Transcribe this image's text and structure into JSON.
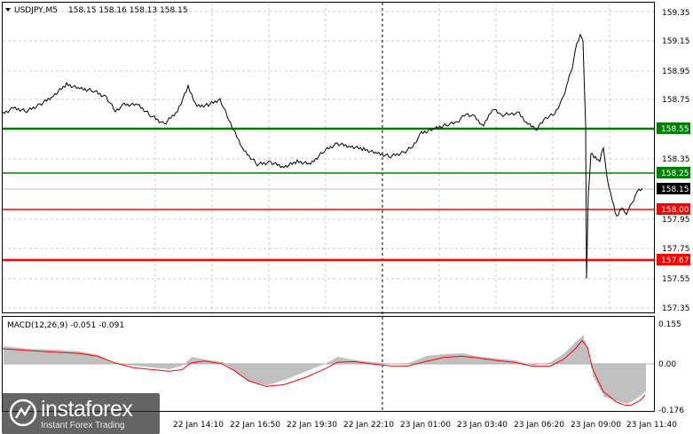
{
  "header": {
    "symbol": "USDJPY,M5",
    "ohlc": "158.15 158.16 158.13 158.15"
  },
  "macd": {
    "title": "MACD(12,26,9) -0.051 -0.091",
    "ticks": [
      "0.155",
      "0.00",
      "-0.176"
    ]
  },
  "price_axis": {
    "ticks": [
      "159.35",
      "159.15",
      "158.95",
      "158.75",
      "158.35",
      "157.95",
      "157.75",
      "157.55",
      "157.35"
    ]
  },
  "time_axis": {
    "ticks": [
      "22 Jan 14:10",
      "22 Jan 16:50",
      "22 Jan 19:30",
      "22 Jan 22:10",
      "23 Jan 01:00",
      "23 Jan 03:40",
      "23 Jan 06:20",
      "23 Jan 09:00",
      "23 Jan 11:40"
    ]
  },
  "levels": [
    {
      "value": "158.55",
      "color": "#008000"
    },
    {
      "value": "158.25",
      "color": "#008000"
    },
    {
      "value": "158.15",
      "color": "#000000"
    },
    {
      "value": "158.00",
      "color": "#ff0000"
    },
    {
      "value": "157.67",
      "color": "#ff0000"
    }
  ],
  "logo": {
    "brand": "instaforex",
    "slogan": "Instant Forex Trading"
  },
  "colors": {
    "support": "#ff0000",
    "resistance": "#008000",
    "price_line": "#000000",
    "macd_hist": "#c0c0c0",
    "macd_signal": "#ff0000"
  },
  "chart_data": {
    "type": "line",
    "symbol": "USDJPY",
    "timeframe": "M5",
    "ylim": [
      157.3,
      159.4
    ],
    "x": [
      "22 Jan 14:10",
      "22 Jan 16:50",
      "22 Jan 19:30",
      "22 Jan 22:10",
      "23 Jan 01:00",
      "23 Jan 03:40",
      "23 Jan 06:20",
      "23 Jan 09:00",
      "23 Jan 11:40"
    ],
    "horizontal_levels": [
      158.55,
      158.25,
      158.0,
      157.67
    ],
    "last_price": 158.15
  }
}
